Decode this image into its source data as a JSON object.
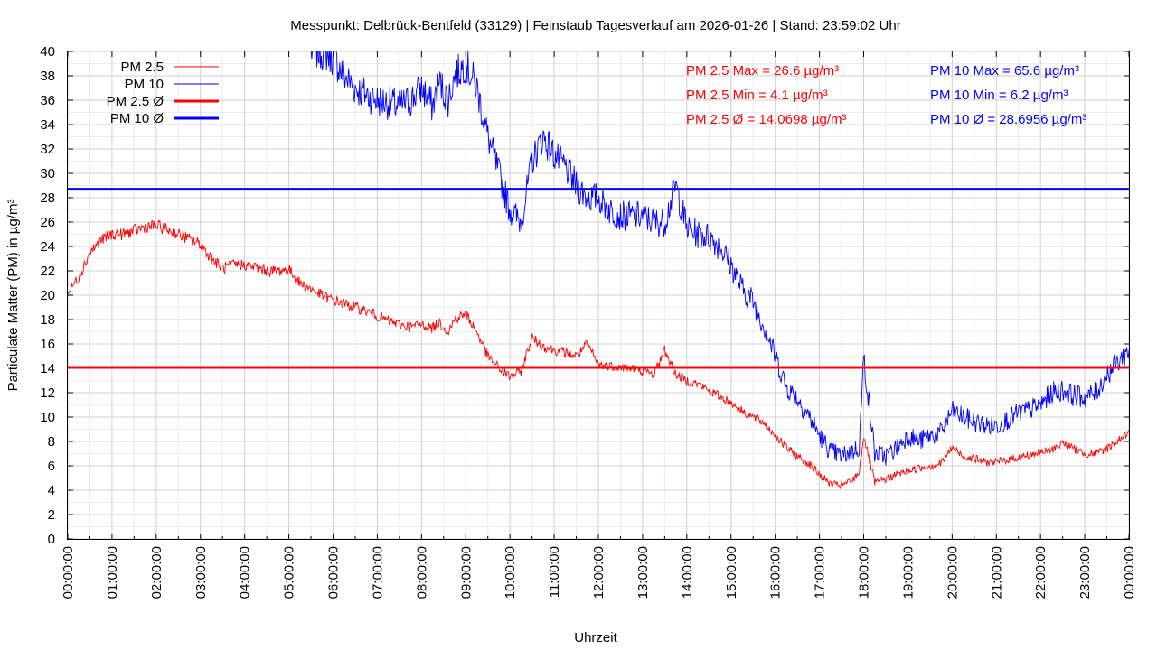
{
  "chart_data": {
    "type": "line",
    "title": "Messpunkt: Delbrück-Bentfeld (33129) | Feinstaub Tagesverlauf am 2026-01-26 | Stand: 23:59:02 Uhr",
    "xlabel": "Uhrzeit",
    "ylabel": "Particulate Matter (PM) in µg/m³",
    "ylim": [
      0,
      40
    ],
    "xlim": [
      "00:00:00",
      "24:00:00"
    ],
    "grid": true,
    "legend_position": "top-left",
    "y_ticks": [
      "0",
      "2",
      "4",
      "6",
      "8",
      "10",
      "12",
      "14",
      "16",
      "18",
      "20",
      "22",
      "24",
      "26",
      "28",
      "30",
      "32",
      "34",
      "36",
      "38",
      "40"
    ],
    "x_ticks": [
      "00:00:00",
      "01:00:00",
      "02:00:00",
      "03:00:00",
      "04:00:00",
      "05:00:00",
      "06:00:00",
      "07:00:00",
      "08:00:00",
      "09:00:00",
      "10:00:00",
      "11:00:00",
      "12:00:00",
      "13:00:00",
      "14:00:00",
      "15:00:00",
      "16:00:00",
      "17:00:00",
      "18:00:00",
      "19:00:00",
      "20:00:00",
      "21:00:00",
      "22:00:00",
      "23:00:00",
      "00:00:00"
    ],
    "colors": {
      "pm25": "#ff0000",
      "pm10": "#0000ff"
    },
    "legend": [
      "PM 2.5",
      "PM 10",
      "PM 2.5 Ø",
      "PM 10 Ø"
    ],
    "stats": {
      "pm25_max": "PM 2.5 Max = 26.6 µg/m³",
      "pm25_min": "PM 2.5 Min = 4.1 µg/m³",
      "pm25_avg": "PM 2.5 Ø = 14.0698 µg/m³",
      "pm10_max": "PM 10 Max = 65.6 µg/m³",
      "pm10_min": "PM 10 Min = 6.2 µg/m³",
      "pm10_avg": "PM 10 Ø = 28.6956 µg/m³"
    },
    "series": [
      {
        "name": "PM 2.5",
        "x_hours": [
          0,
          0.25,
          0.5,
          0.75,
          1,
          1.25,
          1.5,
          1.75,
          2,
          2.25,
          2.5,
          2.75,
          3,
          3.25,
          3.5,
          3.75,
          4,
          4.25,
          4.5,
          4.75,
          5,
          5.25,
          5.5,
          5.75,
          6,
          6.25,
          6.5,
          6.75,
          7,
          7.25,
          7.5,
          7.75,
          8,
          8.25,
          8.4,
          8.6,
          8.75,
          9,
          9.25,
          9.5,
          9.75,
          10,
          10.25,
          10.5,
          10.75,
          11,
          11.25,
          11.5,
          11.75,
          12,
          12.25,
          12.5,
          12.75,
          13,
          13.25,
          13.5,
          13.75,
          14,
          14.25,
          14.5,
          14.75,
          15,
          15.25,
          15.5,
          15.75,
          16,
          16.25,
          16.5,
          16.75,
          17,
          17.25,
          17.5,
          17.75,
          17.9,
          18,
          18.25,
          18.5,
          18.75,
          19,
          19.25,
          19.5,
          19.75,
          20,
          20.25,
          20.5,
          20.75,
          21,
          21.25,
          21.5,
          21.75,
          22,
          22.25,
          22.5,
          22.75,
          23,
          23.25,
          23.5,
          23.75,
          24
        ],
        "values": [
          20.2,
          21.5,
          23.5,
          24.5,
          25,
          25,
          25.3,
          25.6,
          25.7,
          25.4,
          25,
          24.6,
          24.2,
          23,
          22.2,
          22.5,
          22.5,
          22.3,
          22,
          22,
          22.1,
          21,
          20.5,
          20,
          19.6,
          19.3,
          19,
          18.7,
          18.3,
          17.9,
          17.6,
          17.4,
          17.6,
          17.3,
          17.8,
          17.0,
          18,
          18.5,
          17,
          15,
          14,
          13.3,
          13.8,
          16.5,
          15.8,
          15.5,
          15.3,
          15,
          16,
          14.3,
          14.2,
          14.1,
          14.0,
          13.8,
          13.5,
          15.5,
          13.5,
          13.0,
          12.7,
          12.2,
          11.7,
          11.2,
          10.5,
          10.0,
          9.5,
          8.5,
          7.5,
          6.8,
          6.2,
          5.3,
          4.5,
          4.4,
          4.8,
          5.5,
          8.5,
          4.6,
          4.9,
          5.3,
          5.6,
          5.8,
          6.0,
          6.2,
          7.5,
          6.8,
          6.6,
          6.3,
          6.3,
          6.5,
          6.7,
          6.9,
          7.1,
          7.3,
          7.9,
          7.4,
          7.0,
          7.0,
          7.4,
          8.1,
          8.7
        ]
      },
      {
        "name": "PM 10",
        "x_hours": [
          5.5,
          5.75,
          6,
          6.25,
          6.5,
          6.75,
          7,
          7.25,
          7.5,
          7.75,
          8,
          8.25,
          8.4,
          8.6,
          8.75,
          9,
          9.25,
          9.5,
          9.75,
          10,
          10.25,
          10.5,
          10.75,
          11,
          11.25,
          11.5,
          11.75,
          12,
          12.25,
          12.5,
          12.75,
          13,
          13.25,
          13.5,
          13.75,
          14,
          14.25,
          14.5,
          14.75,
          15,
          15.25,
          15.5,
          15.75,
          16,
          16.25,
          16.5,
          16.75,
          17,
          17.25,
          17.5,
          17.75,
          17.9,
          18,
          18.25,
          18.5,
          18.75,
          19,
          19.25,
          19.5,
          19.75,
          20,
          20.25,
          20.5,
          20.75,
          21,
          21.25,
          21.5,
          21.75,
          22,
          22.25,
          22.5,
          22.75,
          23,
          23.25,
          23.5,
          23.75,
          24
        ],
        "values": [
          40,
          40,
          39.5,
          38,
          37,
          36.5,
          36,
          35.8,
          35.5,
          36,
          37,
          35.5,
          37.5,
          36,
          38,
          39,
          37,
          33,
          30,
          27,
          26,
          31,
          33,
          31.5,
          30.5,
          29,
          28,
          28,
          27,
          26.5,
          26.5,
          26.5,
          26,
          26,
          29,
          25.5,
          25,
          24.8,
          24,
          22.5,
          20.5,
          19.5,
          17.5,
          15,
          12.5,
          11.5,
          10.2,
          8.5,
          7.2,
          6.8,
          7.2,
          7.5,
          15,
          7.0,
          6.8,
          7.5,
          8.5,
          8.0,
          8.5,
          8.7,
          10.5,
          10.0,
          9.6,
          9.3,
          9.3,
          9.8,
          10.3,
          10.6,
          11.0,
          12.0,
          12.2,
          11.8,
          11.6,
          12.0,
          13.5,
          14.5,
          15.5
        ]
      },
      {
        "name": "PM 2.5 Ø",
        "value": 14.0698
      },
      {
        "name": "PM 10 Ø",
        "value": 28.6956
      }
    ]
  }
}
